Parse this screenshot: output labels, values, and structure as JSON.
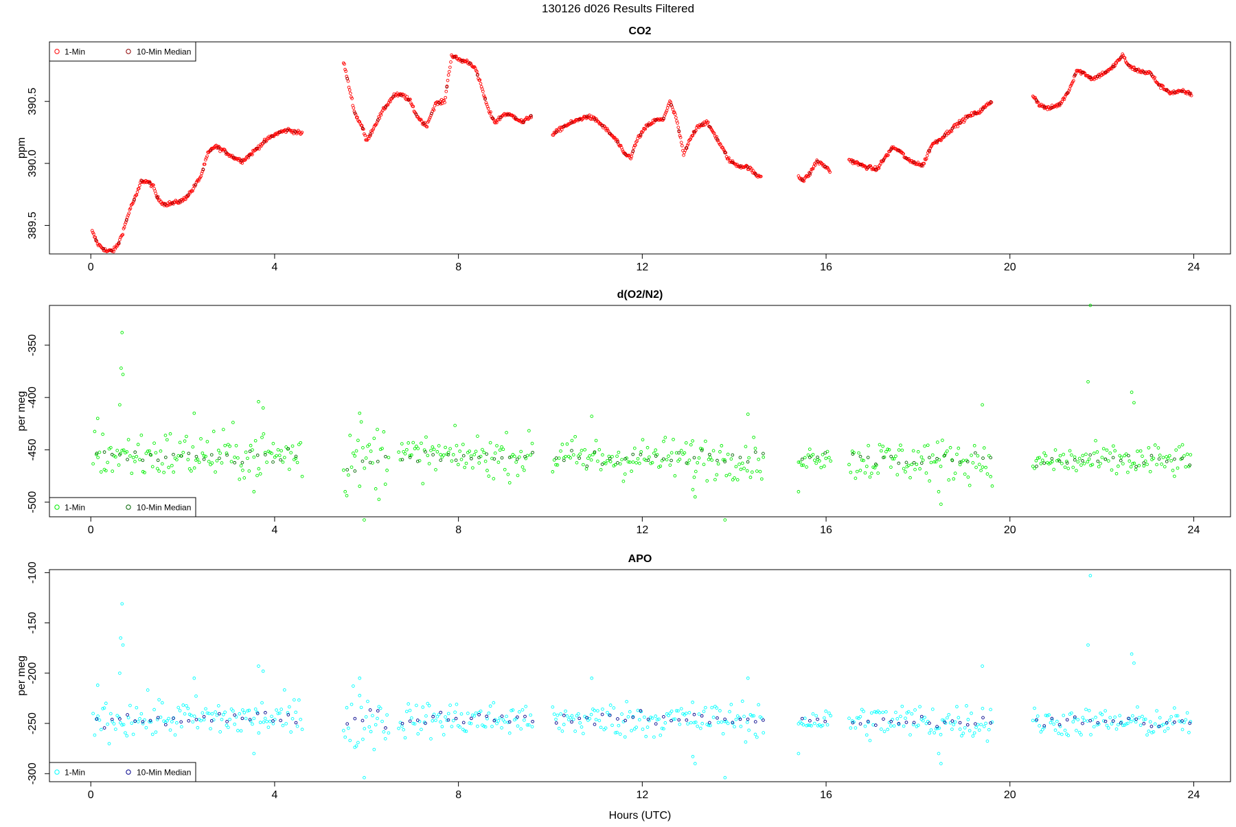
{
  "figure_title": "130126   d026   Results Filtered",
  "chart_data": [
    {
      "type": "scatter",
      "title": "CO2",
      "xlabel": "",
      "ylabel": "ppm",
      "xlim": [
        -0.9,
        24.8
      ],
      "ylim": [
        389.27,
        390.98
      ],
      "xticks": [
        0,
        4,
        8,
        12,
        16,
        20,
        24
      ],
      "yticks": [
        389.5,
        390.0,
        390.5
      ],
      "ytick_labels": [
        "389.5",
        "390.0",
        "390.5"
      ],
      "legend_position": "top-left",
      "grid": false,
      "series": [
        {
          "name": "1-Min",
          "color": "#ff0000",
          "segments": [
            [
              [
                0.03,
                389.45
              ],
              [
                0.15,
                389.35
              ],
              [
                0.35,
                389.29
              ],
              [
                0.5,
                389.3
              ],
              [
                0.6,
                389.35
              ],
              [
                0.7,
                389.45
              ],
              [
                0.85,
                389.63
              ],
              [
                1.0,
                389.75
              ],
              [
                1.1,
                389.86
              ],
              [
                1.25,
                389.85
              ],
              [
                1.35,
                389.82
              ],
              [
                1.45,
                389.72
              ],
              [
                1.6,
                389.67
              ],
              [
                1.8,
                389.68
              ],
              [
                2.0,
                389.7
              ],
              [
                2.2,
                389.78
              ],
              [
                2.4,
                389.9
              ],
              [
                2.55,
                390.08
              ],
              [
                2.7,
                390.14
              ],
              [
                2.9,
                390.1
              ],
              [
                3.1,
                390.05
              ],
              [
                3.3,
                390.02
              ],
              [
                3.5,
                390.08
              ],
              [
                3.7,
                390.15
              ],
              [
                3.9,
                390.21
              ],
              [
                4.1,
                390.25
              ],
              [
                4.3,
                390.27
              ],
              [
                4.5,
                390.25
              ],
              [
                4.6,
                390.24
              ]
            ],
            [
              [
                5.5,
                390.82
              ],
              [
                5.6,
                390.65
              ],
              [
                5.75,
                390.4
              ],
              [
                5.9,
                390.3
              ],
              [
                6.0,
                390.18
              ],
              [
                6.2,
                390.32
              ],
              [
                6.4,
                390.45
              ],
              [
                6.6,
                390.55
              ],
              [
                6.8,
                390.55
              ],
              [
                6.95,
                390.5
              ],
              [
                7.1,
                390.38
              ],
              [
                7.3,
                390.3
              ],
              [
                7.5,
                390.48
              ],
              [
                7.7,
                390.5
              ],
              [
                7.85,
                390.87
              ],
              [
                8.05,
                390.83
              ],
              [
                8.2,
                390.82
              ],
              [
                8.35,
                390.78
              ],
              [
                8.5,
                390.62
              ],
              [
                8.65,
                390.43
              ],
              [
                8.8,
                390.33
              ],
              [
                9.0,
                390.4
              ],
              [
                9.2,
                390.38
              ],
              [
                9.4,
                390.33
              ],
              [
                9.6,
                390.39
              ]
            ],
            [
              [
                10.05,
                390.23
              ],
              [
                10.3,
                390.3
              ],
              [
                10.6,
                390.35
              ],
              [
                10.8,
                390.38
              ],
              [
                11.0,
                390.35
              ],
              [
                11.2,
                390.28
              ],
              [
                11.45,
                390.18
              ],
              [
                11.6,
                390.08
              ],
              [
                11.75,
                390.05
              ],
              [
                11.9,
                390.2
              ],
              [
                12.1,
                390.3
              ],
              [
                12.3,
                390.35
              ],
              [
                12.45,
                390.35
              ],
              [
                12.6,
                390.5
              ],
              [
                12.75,
                390.35
              ],
              [
                12.9,
                390.07
              ],
              [
                13.05,
                390.2
              ],
              [
                13.2,
                390.3
              ],
              [
                13.4,
                390.33
              ],
              [
                13.55,
                390.25
              ],
              [
                13.7,
                390.15
              ],
              [
                13.9,
                390.02
              ],
              [
                14.1,
                389.98
              ],
              [
                14.3,
                389.97
              ],
              [
                14.5,
                389.9
              ],
              [
                14.6,
                389.9
              ]
            ],
            [
              [
                15.4,
                389.9
              ],
              [
                15.5,
                389.86
              ],
              [
                15.65,
                389.92
              ],
              [
                15.8,
                390.02
              ],
              [
                16.0,
                389.97
              ],
              [
                16.1,
                389.93
              ]
            ],
            [
              [
                16.5,
                390.03
              ],
              [
                16.8,
                389.98
              ],
              [
                17.1,
                389.95
              ],
              [
                17.25,
                390.03
              ],
              [
                17.45,
                390.13
              ],
              [
                17.6,
                390.1
              ],
              [
                17.8,
                390.02
              ],
              [
                18.0,
                390.0
              ],
              [
                18.1,
                389.98
              ],
              [
                18.3,
                390.15
              ],
              [
                18.5,
                390.2
              ],
              [
                18.8,
                390.3
              ],
              [
                19.1,
                390.38
              ],
              [
                19.35,
                390.42
              ],
              [
                19.6,
                390.5
              ]
            ],
            [
              [
                20.5,
                390.55
              ],
              [
                20.65,
                390.47
              ],
              [
                20.85,
                390.44
              ],
              [
                21.1,
                390.48
              ],
              [
                21.3,
                390.6
              ],
              [
                21.45,
                390.75
              ],
              [
                21.6,
                390.73
              ],
              [
                21.8,
                390.68
              ],
              [
                22.0,
                390.72
              ],
              [
                22.2,
                390.76
              ],
              [
                22.45,
                390.87
              ],
              [
                22.6,
                390.78
              ],
              [
                22.85,
                390.74
              ],
              [
                23.05,
                390.73
              ],
              [
                23.25,
                390.63
              ],
              [
                23.5,
                390.57
              ],
              [
                23.75,
                390.58
              ],
              [
                23.95,
                390.56
              ]
            ]
          ]
        },
        {
          "name": "10-Min Median",
          "color": "#8b0000",
          "median_interval_hours": 0.1667
        }
      ]
    },
    {
      "type": "scatter",
      "title": "d(O2/N2)",
      "xlabel": "",
      "ylabel": "per meg",
      "xlim": [
        -0.9,
        24.8
      ],
      "ylim": [
        -514,
        -312
      ],
      "xticks": [
        0,
        4,
        8,
        12,
        16,
        20,
        24
      ],
      "yticks": [
        -350,
        -400,
        -450,
        -500
      ],
      "ytick_labels": [
        "-350",
        "-400",
        "-450",
        "-500"
      ],
      "legend_position": "bottom-left",
      "grid": false,
      "series": [
        {
          "name": "1-Min",
          "color": "#00ee00",
          "segments": [
            {
              "range": [
                0.05,
                4.62
              ],
              "center": -455,
              "spread": 12
            },
            {
              "range": [
                5.5,
                6.5
              ],
              "center": -458,
              "spread": 18
            },
            {
              "range": [
                6.7,
                9.62
              ],
              "center": -456,
              "spread": 10
            },
            {
              "range": [
                10.05,
                14.65
              ],
              "center": -458,
              "spread": 10
            },
            {
              "range": [
                15.4,
                16.1
              ],
              "center": -456,
              "spread": 6
            },
            {
              "range": [
                16.5,
                19.65
              ],
              "center": -460,
              "spread": 10
            },
            {
              "range": [
                20.5,
                23.95
              ],
              "center": -461,
              "spread": 8
            }
          ],
          "outliers": [
            [
              0.68,
              -338
            ],
            [
              0.66,
              -372
            ],
            [
              0.7,
              -378
            ],
            [
              0.63,
              -407
            ],
            [
              0.15,
              -420
            ],
            [
              2.25,
              -415
            ],
            [
              3.65,
              -404
            ],
            [
              3.75,
              -410
            ],
            [
              5.85,
              -415
            ],
            [
              5.95,
              -517
            ],
            [
              10.9,
              -418
            ],
            [
              13.1,
              -488
            ],
            [
              13.15,
              -495
            ],
            [
              13.8,
              -517
            ],
            [
              14.3,
              -416
            ],
            [
              15.4,
              -490
            ],
            [
              18.45,
              -490
            ],
            [
              18.5,
              -502
            ],
            [
              19.4,
              -407
            ],
            [
              21.75,
              -312
            ],
            [
              21.7,
              -385
            ],
            [
              22.65,
              -395
            ],
            [
              22.7,
              -405
            ],
            [
              3.55,
              -490
            ]
          ]
        },
        {
          "name": "10-Min Median",
          "color": "#006400",
          "median_interval_hours": 0.1667
        }
      ]
    },
    {
      "type": "scatter",
      "title": "APO",
      "xlabel": "Hours (UTC)",
      "ylabel": "per meg",
      "xlim": [
        -0.9,
        24.8
      ],
      "ylim": [
        -308,
        -97
      ],
      "xticks": [
        0,
        4,
        8,
        12,
        16,
        20,
        24
      ],
      "yticks": [
        -100,
        -150,
        -200,
        -250,
        -300
      ],
      "ytick_labels": [
        "-100",
        "-150",
        "-200",
        "-250",
        "-300"
      ],
      "legend_position": "bottom-left",
      "grid": false,
      "series": [
        {
          "name": "1-Min",
          "color": "#00ffff",
          "segments": [
            {
              "range": [
                0.05,
                4.62
              ],
              "center": -245,
              "spread": 10
            },
            {
              "range": [
                5.5,
                6.5
              ],
              "center": -245,
              "spread": 16
            },
            {
              "range": [
                6.7,
                9.62
              ],
              "center": -246,
              "spread": 9
            },
            {
              "range": [
                10.05,
                14.65
              ],
              "center": -246,
              "spread": 9
            },
            {
              "range": [
                15.4,
                16.1
              ],
              "center": -247,
              "spread": 6
            },
            {
              "range": [
                16.5,
                19.65
              ],
              "center": -248,
              "spread": 9
            },
            {
              "range": [
                20.5,
                23.95
              ],
              "center": -249,
              "spread": 7
            }
          ],
          "outliers": [
            [
              0.68,
              -131
            ],
            [
              0.65,
              -165
            ],
            [
              0.7,
              -172
            ],
            [
              0.63,
              -200
            ],
            [
              0.15,
              -212
            ],
            [
              2.25,
              -205
            ],
            [
              3.65,
              -193
            ],
            [
              3.75,
              -198
            ],
            [
              5.85,
              -205
            ],
            [
              5.95,
              -304
            ],
            [
              10.9,
              -205
            ],
            [
              13.1,
              -283
            ],
            [
              13.15,
              -290
            ],
            [
              13.8,
              -304
            ],
            [
              14.3,
              -205
            ],
            [
              15.4,
              -280
            ],
            [
              18.45,
              -280
            ],
            [
              18.5,
              -290
            ],
            [
              19.4,
              -193
            ],
            [
              21.75,
              -103
            ],
            [
              21.7,
              -172
            ],
            [
              22.65,
              -181
            ],
            [
              22.7,
              -190
            ],
            [
              3.55,
              -280
            ]
          ]
        },
        {
          "name": "10-Min Median",
          "color": "#00008b",
          "median_interval_hours": 0.1667
        }
      ]
    }
  ]
}
